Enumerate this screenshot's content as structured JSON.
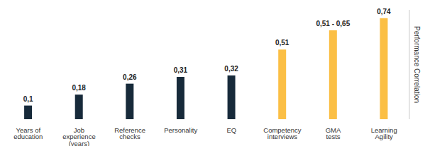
{
  "chart_data": {
    "type": "bar",
    "y_label": "Performance Correlation",
    "categories": [
      "Years of education",
      "Job experience (years)",
      "Reference checks",
      "Personality",
      "EQ",
      "Competency interviews",
      "GMA tests",
      "Learning Agility"
    ],
    "values": [
      0.1,
      0.18,
      0.26,
      0.31,
      0.32,
      0.51,
      0.65,
      0.74
    ],
    "value_labels": [
      "0,1",
      "0,18",
      "0,26",
      "0,31",
      "0,32",
      "0,51",
      "0,51 - 0,65",
      "0,74"
    ],
    "colors": [
      "#172a3a",
      "#172a3a",
      "#172a3a",
      "#172a3a",
      "#172a3a",
      "#fbbf45",
      "#fbbf45",
      "#fbbf45"
    ],
    "ylim": [
      0,
      0.8
    ],
    "grid": false,
    "data_labels": true,
    "tick_labels": "x"
  }
}
